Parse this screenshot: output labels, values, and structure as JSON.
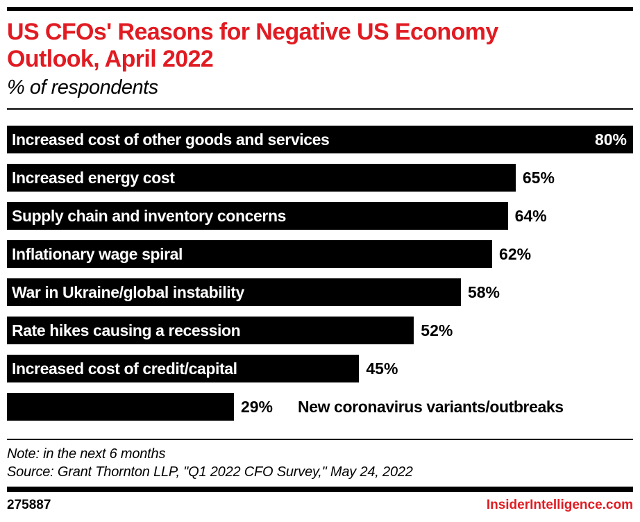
{
  "page": {
    "colors": {
      "accent_red": "#e11b22",
      "bar_black": "#000000",
      "background": "#ffffff",
      "bar_text_white": "#ffffff"
    }
  },
  "header": {
    "title_line1": "US CFOs' Reasons for Negative US Economy",
    "title_line2": "Outlook, April 2022",
    "subtitle": "% of respondents"
  },
  "chart_data": {
    "type": "bar",
    "orientation": "horizontal",
    "title": "US CFOs' Reasons for Negative US Economy Outlook, April 2022",
    "subtitle": "% of respondents",
    "unit": "% of respondents",
    "axis_max": 80,
    "grid": false,
    "legend": false,
    "categories": [
      "Increased cost of other goods and services",
      "Increased energy cost",
      "Supply chain and inventory concerns",
      "Inflationary wage spiral",
      "War in Ukraine/global instability",
      "Rate hikes causing a recession",
      "Increased cost of credit/capital",
      "New coronavirus variants/outbreaks"
    ],
    "values": [
      80,
      65,
      64,
      62,
      58,
      52,
      45,
      29
    ],
    "bars": [
      {
        "label": "Increased cost of other goods and services",
        "value": 80,
        "display": "80%",
        "label_inside": true,
        "value_inside": true,
        "label_outside": false
      },
      {
        "label": "Increased energy cost",
        "value": 65,
        "display": "65%",
        "label_inside": true,
        "value_inside": false,
        "label_outside": false
      },
      {
        "label": "Supply chain and inventory concerns",
        "value": 64,
        "display": "64%",
        "label_inside": true,
        "value_inside": false,
        "label_outside": false
      },
      {
        "label": "Inflationary wage spiral",
        "value": 62,
        "display": "62%",
        "label_inside": true,
        "value_inside": false,
        "label_outside": false
      },
      {
        "label": "War in Ukraine/global instability",
        "value": 58,
        "display": "58%",
        "label_inside": true,
        "value_inside": false,
        "label_outside": false
      },
      {
        "label": "Rate hikes causing a recession",
        "value": 52,
        "display": "52%",
        "label_inside": true,
        "value_inside": false,
        "label_outside": false
      },
      {
        "label": "Increased cost of credit/capital",
        "value": 45,
        "display": "45%",
        "label_inside": true,
        "value_inside": false,
        "label_outside": false
      },
      {
        "label": "New coronavirus variants/outbreaks",
        "value": 29,
        "display": "29%",
        "label_inside": false,
        "value_inside": false,
        "label_outside": true
      }
    ]
  },
  "footer": {
    "note": "Note: in the next 6 months",
    "source": "Source: Grant Thornton LLP, \"Q1 2022 CFO Survey,\" May 24, 2022",
    "chart_id": "275887",
    "brand": "InsiderIntelligence.com"
  }
}
